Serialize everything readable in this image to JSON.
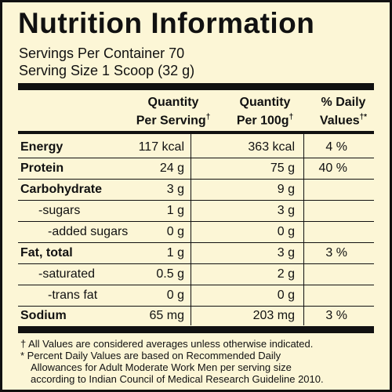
{
  "title": "Nutrition Information",
  "servings_per_container": "Servings Per Container 70",
  "serving_size": "Serving Size 1 Scoop (32 g)",
  "headers": {
    "per_serving_line1": "Quantity",
    "per_serving_line2": "Per Serving",
    "per_serving_mark": "†",
    "per_100g_line1": "Quantity",
    "per_100g_line2": "Per 100g",
    "per_100g_mark": "†",
    "daily_line1": "% Daily",
    "daily_line2": "Values",
    "daily_mark": "†*"
  },
  "rows": [
    {
      "name": "Energy",
      "per_serving": "117 kcal",
      "per_100g": "363 kcal",
      "daily": "4 %"
    },
    {
      "name": "Protein",
      "per_serving": "24 g",
      "per_100g": "75 g",
      "daily": "40 %"
    },
    {
      "name": "Carbohydrate",
      "per_serving": "3 g",
      "per_100g": "9 g",
      "daily": ""
    },
    {
      "name": "-sugars",
      "per_serving": "1 g",
      "per_100g": "3 g",
      "daily": ""
    },
    {
      "name": "-added sugars",
      "per_serving": "0 g",
      "per_100g": "0 g",
      "daily": ""
    },
    {
      "name": "Fat, total",
      "per_serving": "1 g",
      "per_100g": "3 g",
      "daily": "3 %"
    },
    {
      "name": "-saturated",
      "per_serving": "0.5 g",
      "per_100g": "2 g",
      "daily": ""
    },
    {
      "name": "-trans fat",
      "per_serving": "0 g",
      "per_100g": "0 g",
      "daily": ""
    },
    {
      "name": "Sodium",
      "per_serving": "65 mg",
      "per_100g": "203 mg",
      "daily": "3 %"
    }
  ],
  "footnote_1": "† All Values are considered averages unless otherwise indicated.",
  "footnote_2a": "* Percent Daily Values are based on Recommended Daily",
  "footnote_2b": "Allowances for Adult Moderate Work Men per serving size",
  "footnote_2c": "according to Indian Council of Medical Research Guideline 2010."
}
